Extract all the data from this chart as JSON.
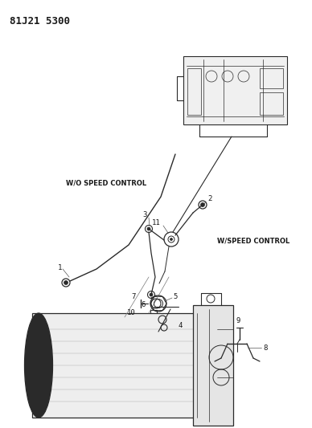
{
  "title": "81J21 5300",
  "bg_color": "#ffffff",
  "line_color": "#2a2a2a",
  "text_color": "#1a1a1a",
  "title_fontsize": 9,
  "label_fontsize": 6.5,
  "annot_fontsize": 6.0
}
